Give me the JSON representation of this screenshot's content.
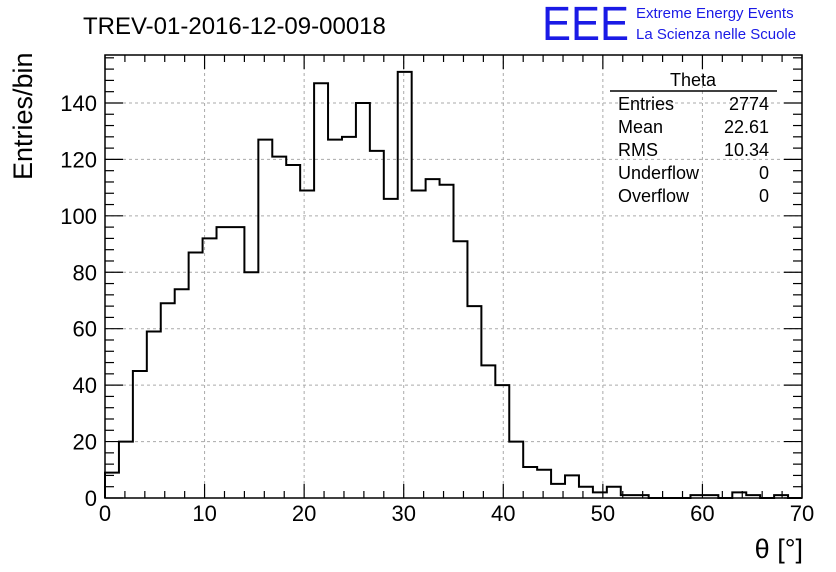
{
  "chart_data": {
    "type": "bar",
    "title": "TREV-01-2016-12-09-00018",
    "xlabel": "θ [°]",
    "ylabel": "Entries/bin",
    "xlim": [
      0,
      70
    ],
    "ylim": [
      0,
      157
    ],
    "grid": true,
    "bin_width": 1.4,
    "x_ticks": [
      0,
      10,
      20,
      30,
      40,
      50,
      60,
      70
    ],
    "y_ticks": [
      0,
      20,
      40,
      60,
      80,
      100,
      120,
      140
    ],
    "values": [
      9,
      20,
      45,
      59,
      69,
      74,
      87,
      92,
      96,
      96,
      80,
      127,
      121,
      118,
      109,
      147,
      127,
      128,
      140,
      123,
      106,
      151,
      109,
      113,
      111,
      91,
      68,
      47,
      40,
      20,
      11,
      10,
      5,
      8,
      4,
      2,
      4,
      1,
      1,
      0,
      0,
      0,
      1,
      1,
      0,
      2,
      1,
      0,
      1,
      0
    ]
  },
  "stats_box": {
    "name": "Theta",
    "rows": [
      {
        "label": "Entries",
        "value": "2774"
      },
      {
        "label": "Mean",
        "value": "22.61"
      },
      {
        "label": "RMS",
        "value": "10.34"
      },
      {
        "label": "Underflow",
        "value": "0"
      },
      {
        "label": "Overflow",
        "value": "0"
      }
    ]
  },
  "logo": {
    "letters": "EEE",
    "line1": "Extreme Energy Events",
    "line2": "La Scienza nelle Scuole",
    "color": "#1a1ae6"
  }
}
